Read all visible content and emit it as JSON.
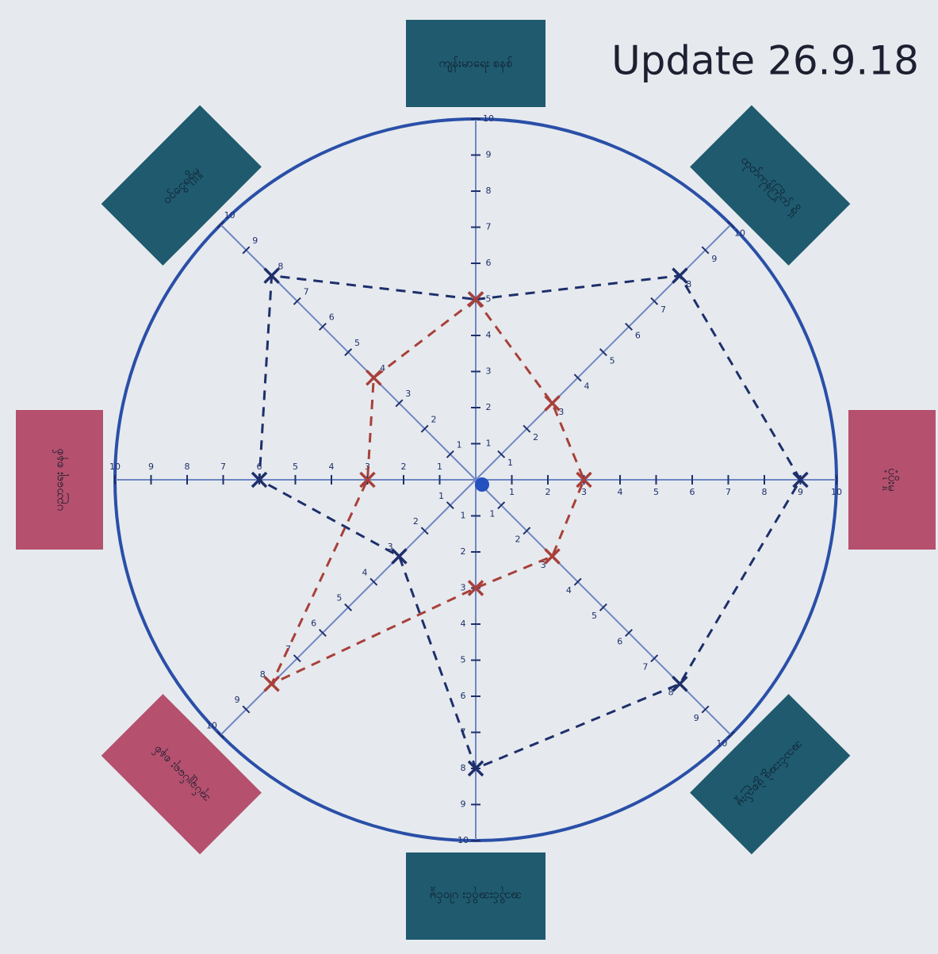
{
  "chart_data": {
    "type": "radar",
    "title": "Update 26.9.18",
    "categories": [
      "ကျန်းမာရေး စနစ်",
      "ထုတ်ကုန်ကြိုက် ရှိ",
      "ပံ့ပိုးမှု",
      "အသင်းအဖွဲ့ ဖွဲ့စည်းမှု",
      "အသိုင်းအဝိုင်း ပါဝင်မှု",
      "အုပ်ချုပ်ရေး စနစ်",
      "ပညာရေး စနစ်",
      "ဝင်ငွေရရှိမှု"
    ],
    "category_colors": [
      "#1f5a6e",
      "#1f5a6e",
      "#b5506e",
      "#1f5a6e",
      "#1f5a6e",
      "#b5506e",
      "#b5506e",
      "#1f5a6e"
    ],
    "series": [
      {
        "color": "#1e2f6b",
        "values": [
          5,
          8,
          9,
          8,
          8,
          3,
          6,
          8
        ]
      },
      {
        "color": "#a8403a",
        "values": [
          5,
          3,
          3,
          3,
          3,
          8,
          3,
          4
        ]
      }
    ],
    "rlim": [
      0,
      10
    ],
    "rticks": [
      1,
      2,
      3,
      4,
      5,
      6,
      7,
      8,
      9,
      10
    ],
    "axis_color": "#2a4fa8"
  }
}
